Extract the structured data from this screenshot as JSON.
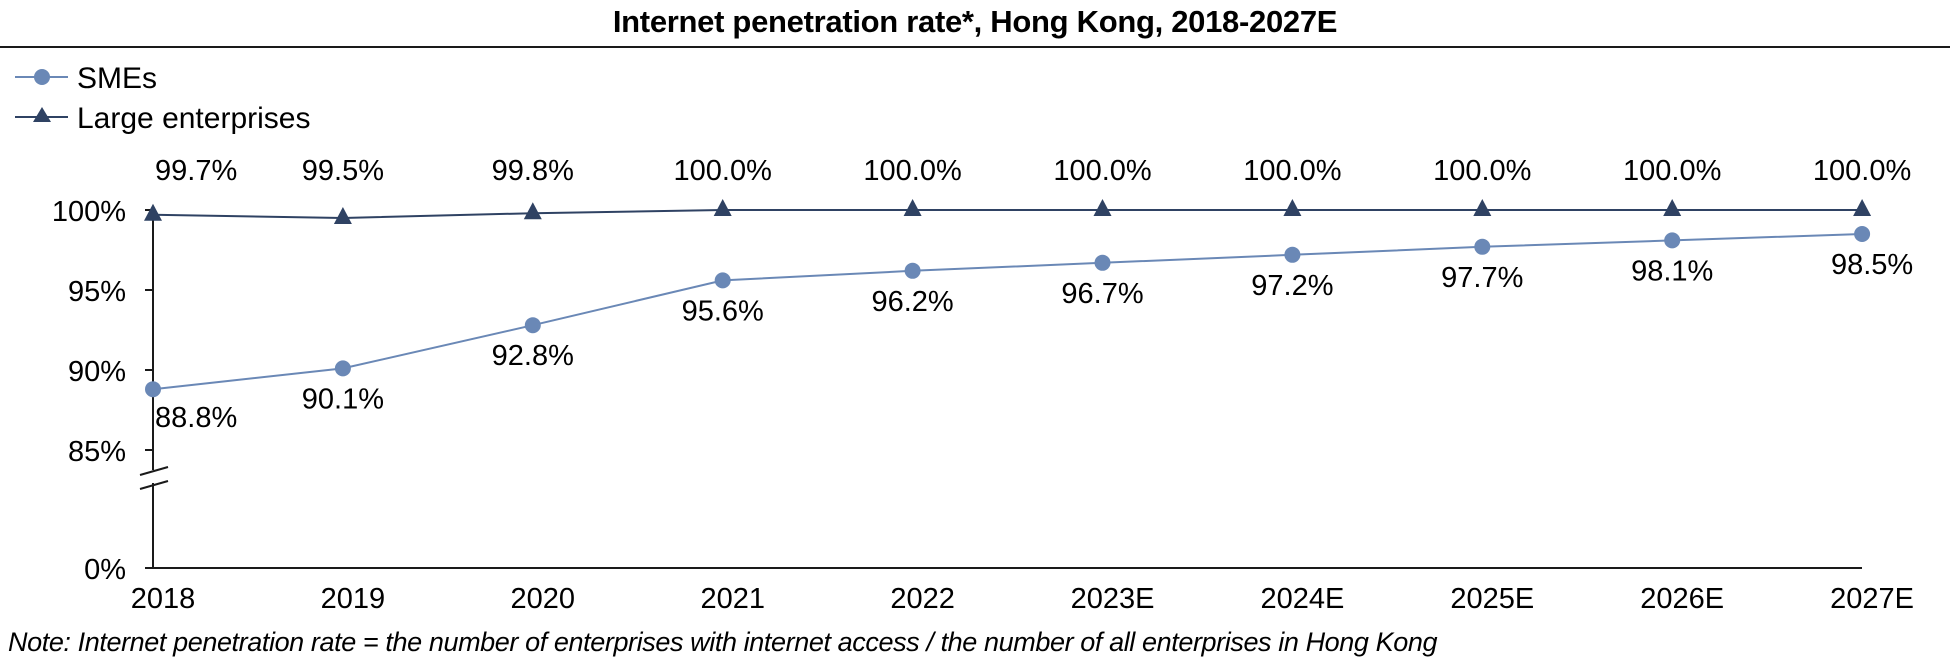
{
  "chart_data": {
    "type": "line",
    "title": "Internet penetration rate*, Hong Kong, 2018-2027E",
    "xlabel": "",
    "ylabel": "",
    "categories": [
      "2018",
      "2019",
      "2020",
      "2021",
      "2022",
      "2023E",
      "2024E",
      "2025E",
      "2026E",
      "2027E"
    ],
    "y_ticks": [
      {
        "value": 0,
        "label": "0%"
      },
      {
        "value": 85,
        "label": "85%"
      },
      {
        "value": 90,
        "label": "90%"
      },
      {
        "value": 95,
        "label": "95%"
      },
      {
        "value": 100,
        "label": "100%"
      }
    ],
    "ylim": [
      0,
      100
    ],
    "axis_break": {
      "from": 0,
      "to": 85
    },
    "grid": false,
    "legend": {
      "position": "top-left"
    },
    "series": [
      {
        "name": "SMEs",
        "marker": "circle",
        "color": "#6a88b6",
        "label_position": "below",
        "values": [
          88.8,
          90.1,
          92.8,
          95.6,
          96.2,
          96.7,
          97.2,
          97.7,
          98.1,
          98.5
        ],
        "labels": [
          "88.8%",
          "90.1%",
          "92.8%",
          "95.6%",
          "96.2%",
          "96.7%",
          "97.2%",
          "97.7%",
          "98.1%",
          "98.5%"
        ]
      },
      {
        "name": "Large enterprises",
        "marker": "triangle",
        "color": "#2f4263",
        "label_position": "above",
        "values": [
          99.7,
          99.5,
          99.8,
          100.0,
          100.0,
          100.0,
          100.0,
          100.0,
          100.0,
          100.0
        ],
        "labels": [
          "99.7%",
          "99.5%",
          "99.8%",
          "100.0%",
          "100.0%",
          "100.0%",
          "100.0%",
          "100.0%",
          "100.0%",
          "100.0%"
        ]
      }
    ],
    "footnote": "Note: Internet penetration rate = the number of enterprises with internet access / the number of all enterprises in Hong Kong"
  }
}
